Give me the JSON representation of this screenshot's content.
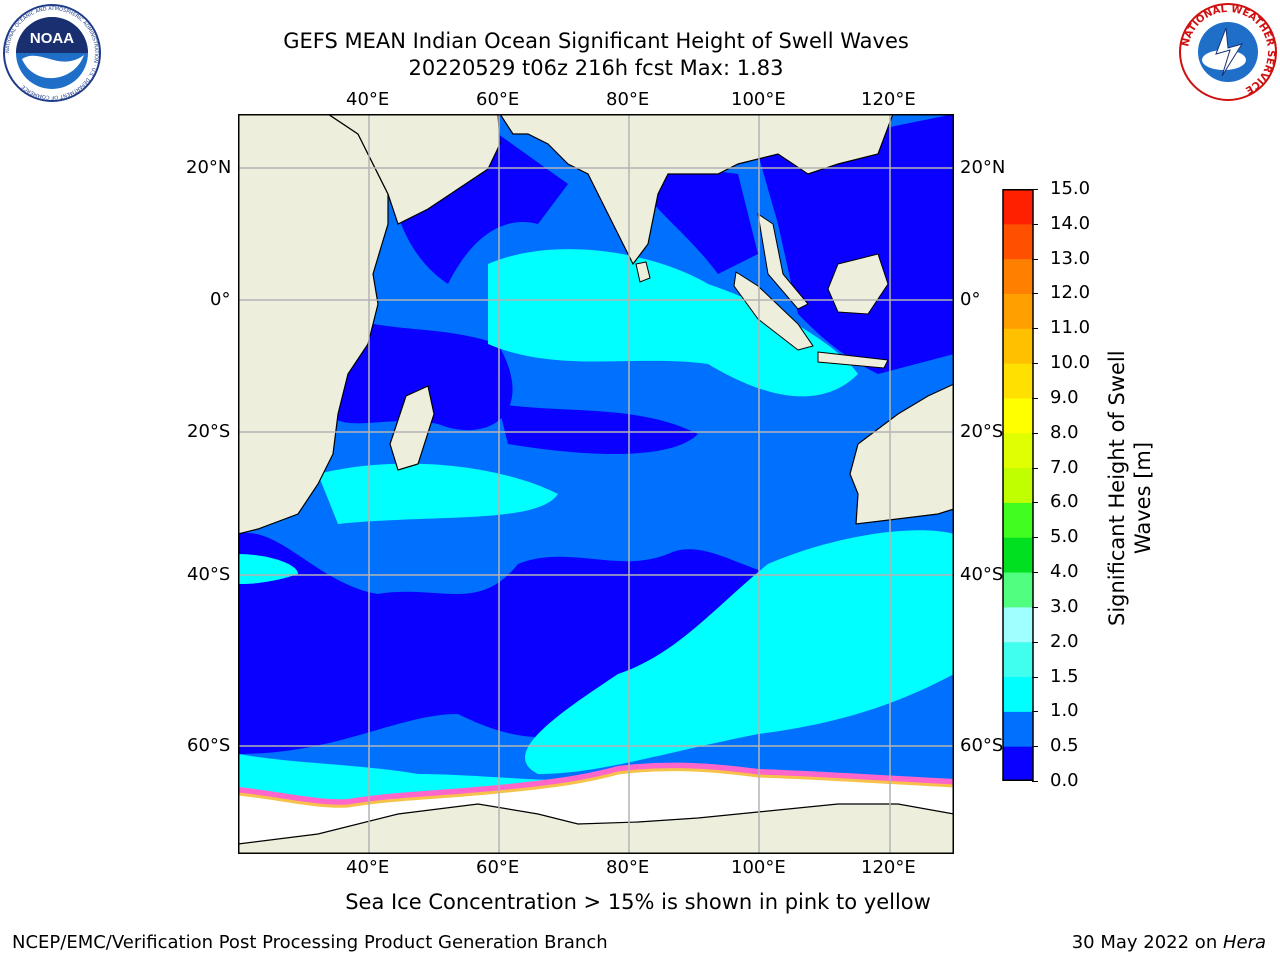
{
  "header": {
    "title_line1": "GEFS MEAN Indian Ocean Significant Height of Swell Waves",
    "title_line2": "20220529 t06z 216h fcst   Max: 1.83"
  },
  "logos": {
    "noaa_text": "NOAA",
    "noaa_ring": "NATIONAL OCEANIC AND ATMOSPHERIC ADMINISTRATION · U.S. DEPARTMENT OF COMMERCE",
    "nws_ring": "NATIONAL WEATHER SERVICE"
  },
  "map": {
    "lon_labels": [
      "40°E",
      "60°E",
      "80°E",
      "100°E",
      "120°E"
    ],
    "lat_labels": [
      "20°N",
      "0°",
      "20°S",
      "40°S",
      "60°S"
    ],
    "colors": {
      "land": "#eeeedd",
      "ice": "#ffffff",
      "ice_edge": "#ff66cc",
      "ice_yellow": "#f7c24a",
      "grid": "#b4b4b4"
    }
  },
  "colorbar": {
    "label_line1": "Significant Height of Swell",
    "label_line2": "Waves [m]",
    "ticks": [
      "0.0",
      "0.5",
      "1.0",
      "1.5",
      "2.0",
      "3.0",
      "4.0",
      "5.0",
      "6.0",
      "7.0",
      "8.0",
      "9.0",
      "10.0",
      "11.0",
      "12.0",
      "13.0",
      "14.0",
      "15.0"
    ],
    "colors": [
      "#0a00ff",
      "#0070ff",
      "#00ffff",
      "#40ffee",
      "#a0ffff",
      "#50ff80",
      "#00e020",
      "#40ff20",
      "#c0ff00",
      "#e0ff00",
      "#ffff00",
      "#ffe000",
      "#ffc000",
      "#ffa000",
      "#ff8000",
      "#ff5000",
      "#ff2000"
    ]
  },
  "footer": {
    "note": "Sea Ice Concentration > 15% is shown in pink to yellow",
    "credit": "NCEP/EMC/Verification Post Processing Product Generation Branch",
    "date": "30 May 2022 on ",
    "machine": "Hera"
  }
}
